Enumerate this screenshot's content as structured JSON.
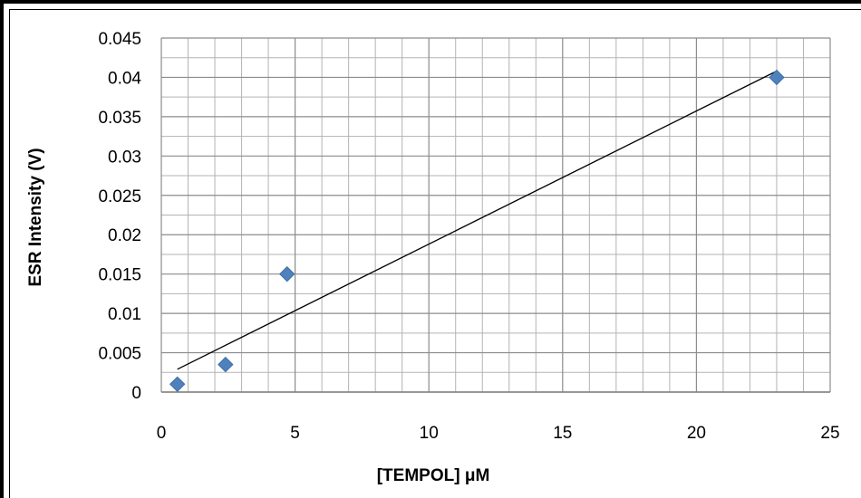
{
  "chart_data": {
    "type": "scatter",
    "title": "",
    "xlabel": "[TEMPOL] μM",
    "ylabel": "ESR Intensity (V)",
    "xlim": [
      0,
      25
    ],
    "ylim": [
      0,
      0.045
    ],
    "x_ticks": [
      "0",
      "5",
      "10",
      "15",
      "20",
      "25"
    ],
    "y_ticks": [
      "0",
      "0.005",
      "0.01",
      "0.015",
      "0.02",
      "0.025",
      "0.03",
      "0.035",
      "0.04",
      "0.045"
    ],
    "x_tick_values": [
      0,
      5,
      10,
      15,
      20,
      25
    ],
    "y_tick_values": [
      0,
      0.005,
      0.01,
      0.015,
      0.02,
      0.025,
      0.03,
      0.035,
      0.04,
      0.045
    ],
    "grid": true,
    "legend": "none",
    "series": [
      {
        "x": [
          0.6,
          2.4,
          4.7,
          23.0
        ],
        "y": [
          0.001,
          0.0035,
          0.015,
          0.04
        ],
        "marker": "diamond",
        "color": "#4f81bd"
      }
    ],
    "trendline": {
      "type": "linear",
      "x": [
        0.6,
        23.0
      ],
      "y": [
        0.0029,
        0.0408
      ],
      "color": "#000000"
    }
  }
}
